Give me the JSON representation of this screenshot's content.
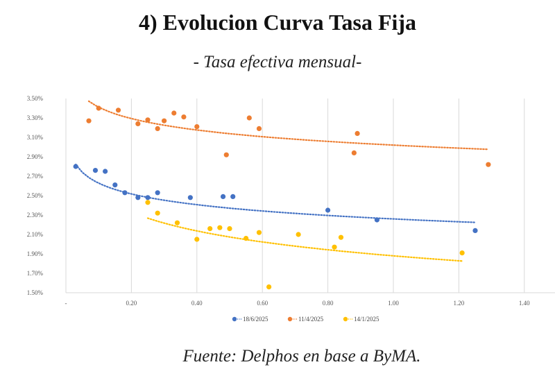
{
  "header": {
    "title": "4) Evolucion Curva Tasa Fija",
    "subtitle": "- Tasa efectiva mensual-"
  },
  "footer": {
    "source": "Fuente: Delphos en base a ByMA."
  },
  "chart_data": {
    "type": "scatter",
    "x_ticks": [
      "-",
      "0.20",
      "0.40",
      "0.60",
      "0.80",
      "1.00",
      "1.20",
      "1.40"
    ],
    "y_ticks": [
      "1.50%",
      "1.70%",
      "1.90%",
      "2.10%",
      "2.30%",
      "2.50%",
      "2.70%",
      "2.90%",
      "3.10%",
      "3.30%",
      "3.50%"
    ],
    "xlim": [
      0,
      1.5
    ],
    "ylim": [
      1.5,
      3.5
    ],
    "grid": "vertical",
    "legend_position": "bottom",
    "trendline": "logarithmic, dotted",
    "series": [
      {
        "name": "18/6/2025",
        "color": "#4472c4",
        "points": [
          [
            0.03,
            2.8
          ],
          [
            0.09,
            2.76
          ],
          [
            0.12,
            2.75
          ],
          [
            0.15,
            2.61
          ],
          [
            0.18,
            2.53
          ],
          [
            0.22,
            2.48
          ],
          [
            0.25,
            2.48
          ],
          [
            0.28,
            2.53
          ],
          [
            0.38,
            2.48
          ],
          [
            0.48,
            2.49
          ],
          [
            0.51,
            2.49
          ],
          [
            0.8,
            2.35
          ],
          [
            0.95,
            2.25
          ],
          [
            1.25,
            2.14
          ]
        ],
        "trend": {
          "a": 2.26,
          "b": -0.16
        }
      },
      {
        "name": "11/4/2025",
        "color": "#ed7d31",
        "points": [
          [
            0.07,
            3.27
          ],
          [
            0.1,
            3.4
          ],
          [
            0.16,
            3.38
          ],
          [
            0.22,
            3.24
          ],
          [
            0.25,
            3.28
          ],
          [
            0.28,
            3.19
          ],
          [
            0.3,
            3.27
          ],
          [
            0.33,
            3.35
          ],
          [
            0.36,
            3.31
          ],
          [
            0.4,
            3.21
          ],
          [
            0.49,
            2.92
          ],
          [
            0.56,
            3.3
          ],
          [
            0.59,
            3.19
          ],
          [
            0.88,
            2.94
          ],
          [
            0.89,
            3.14
          ],
          [
            1.29,
            2.82
          ]
        ],
        "trend": {
          "a": 3.02,
          "b": -0.17
        }
      },
      {
        "name": "14/1/2025",
        "color": "#ffc000",
        "points": [
          [
            0.25,
            2.43
          ],
          [
            0.28,
            2.32
          ],
          [
            0.34,
            2.22
          ],
          [
            0.4,
            2.05
          ],
          [
            0.44,
            2.16
          ],
          [
            0.47,
            2.17
          ],
          [
            0.5,
            2.16
          ],
          [
            0.55,
            2.06
          ],
          [
            0.59,
            2.12
          ],
          [
            0.62,
            1.56
          ],
          [
            0.71,
            2.1
          ],
          [
            0.82,
            1.97
          ],
          [
            0.84,
            2.07
          ],
          [
            1.21,
            1.91
          ]
        ],
        "trend": {
          "a": 1.88,
          "b": -0.28
        }
      }
    ]
  }
}
